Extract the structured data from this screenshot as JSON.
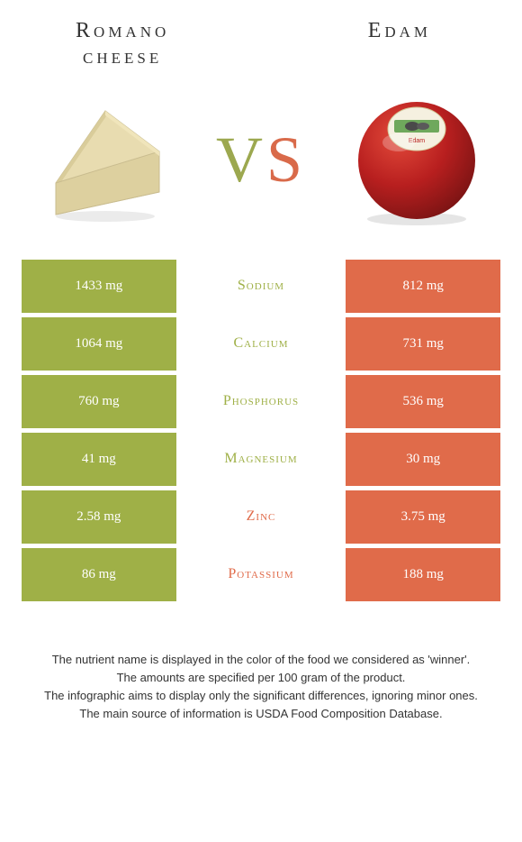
{
  "colors": {
    "green": "#9fb047",
    "orange": "#e06b4a",
    "vs_green": "#9ca84f",
    "vs_orange": "#d96a4a",
    "text": "#333333",
    "white": "#ffffff"
  },
  "left_title": "Romano cheese",
  "right_title": "Edam",
  "vs_v": "V",
  "vs_s": "S",
  "rows": [
    {
      "nutrient": "Sodium",
      "left": "1433 mg",
      "right": "812 mg",
      "winner": "left"
    },
    {
      "nutrient": "Calcium",
      "left": "1064 mg",
      "right": "731 mg",
      "winner": "left"
    },
    {
      "nutrient": "Phosphorus",
      "left": "760 mg",
      "right": "536 mg",
      "winner": "left"
    },
    {
      "nutrient": "Magnesium",
      "left": "41 mg",
      "right": "30 mg",
      "winner": "left"
    },
    {
      "nutrient": "Zinc",
      "left": "2.58 mg",
      "right": "3.75 mg",
      "winner": "right"
    },
    {
      "nutrient": "Potassium",
      "left": "86 mg",
      "right": "188 mg",
      "winner": "right"
    }
  ],
  "footer": [
    "The nutrient name is displayed in the color of the food we considered as 'winner'.",
    "The amounts are specified per 100 gram of the product.",
    "The infographic aims to display only the significant differences, ignoring minor ones.",
    "The main source of information is USDA Food Composition Database."
  ]
}
